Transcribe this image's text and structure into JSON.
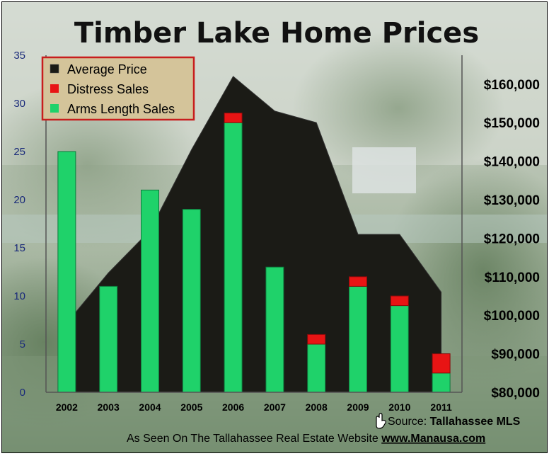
{
  "chart_data": {
    "type": "bar",
    "title": "Timber Lake Home Prices",
    "categories": [
      "2002",
      "2003",
      "2004",
      "2005",
      "2006",
      "2007",
      "2008",
      "2009",
      "2010",
      "2011"
    ],
    "series": [
      {
        "name": "Arms Length Sales",
        "type": "bar",
        "axis": "left",
        "color": "#1fd26a",
        "values": [
          25,
          11,
          21,
          19,
          28,
          13,
          5,
          11,
          9,
          2
        ]
      },
      {
        "name": "Distress Sales",
        "type": "bar",
        "axis": "left",
        "stacked": true,
        "color": "#e81414",
        "values": [
          0,
          0,
          0,
          0,
          1,
          0,
          1,
          1,
          1,
          2
        ]
      },
      {
        "name": "Average Price",
        "type": "area",
        "axis": "right",
        "color": "#1b1b16",
        "values": [
          98000,
          111000,
          122000,
          143000,
          162000,
          153000,
          150000,
          121000,
          121000,
          106000
        ]
      }
    ],
    "ylim_left": [
      0,
      35
    ],
    "yticks_left": [
      "0",
      "5",
      "10",
      "15",
      "20",
      "25",
      "30",
      "35"
    ],
    "ylim_right": [
      80000,
      167500
    ],
    "yticks_right": [
      "$80,000",
      "$90,000",
      "$100,000",
      "$110,000",
      "$120,000",
      "$130,000",
      "$140,000",
      "$150,000",
      "$160,000"
    ],
    "legend": {
      "position": "top-left",
      "items": [
        "Average Price",
        "Distress Sales",
        "Arms Length Sales"
      ]
    },
    "source_label": "Source: ",
    "source_name": "Tallahassee MLS",
    "footer_text": "As Seen On The Tallahassee Real Estate Website ",
    "footer_link": "www.Manausa.com",
    "icon": "pointing-hand-icon"
  }
}
